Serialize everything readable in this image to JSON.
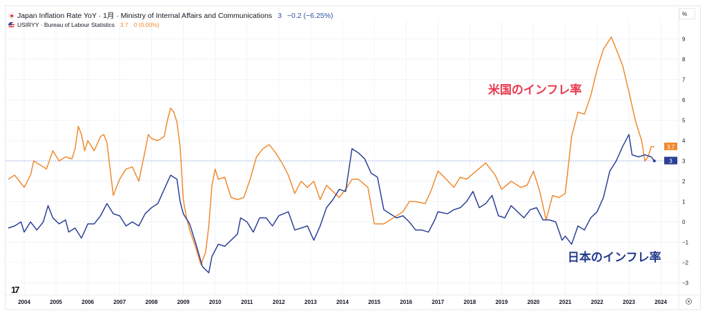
{
  "legend": {
    "jp": {
      "title": "Japan Inflation Rate YoY · 1月 · Ministry of Internal Affairs and Communications",
      "value": "3",
      "change": "−0.2 (−6.25%)"
    },
    "us": {
      "title": "USIRYY · Bureau of Labour Statistics",
      "value": "3.7",
      "change": "0 (0.00%)"
    }
  },
  "annotations": {
    "us": "米国のインフレ率",
    "jp": "日本のインフレ率"
  },
  "axis_unit": "%",
  "logo": "17",
  "icons": {
    "flag_jp": "japan-flag-icon",
    "flag_us": "us-flag-icon",
    "settings": "gear-icon"
  },
  "chart_data": {
    "type": "line",
    "xlim": [
      2003.4,
      2024.6
    ],
    "ylim": [
      -3.4,
      9.9
    ],
    "x_ticks": [
      "2004",
      "2005",
      "2006",
      "2007",
      "2008",
      "2009",
      "2010",
      "2011",
      "2012",
      "2013",
      "2014",
      "2015",
      "2016",
      "2017",
      "2018",
      "2019",
      "2020",
      "2021",
      "2022",
      "2023",
      "2024"
    ],
    "y_ticks": [
      -3,
      -2,
      -1,
      0,
      1,
      2,
      3,
      4,
      5,
      6,
      7,
      8,
      9
    ],
    "grid": true,
    "last_value_labels": {
      "us": "3.7",
      "jp": "3"
    },
    "reference_line": 3,
    "colors": {
      "us": "#f0892e",
      "jp": "#2b3f96",
      "annot_us": "#e8384f",
      "annot_jp": "#22398a"
    },
    "series": [
      {
        "key": "us",
        "name": "USIRYY",
        "points": [
          [
            2003.5,
            2.1
          ],
          [
            2003.7,
            2.3
          ],
          [
            2003.9,
            1.9
          ],
          [
            2004.0,
            1.7
          ],
          [
            2004.2,
            2.3
          ],
          [
            2004.3,
            3.0
          ],
          [
            2004.5,
            2.8
          ],
          [
            2004.7,
            2.6
          ],
          [
            2004.9,
            3.5
          ],
          [
            2005.1,
            3.0
          ],
          [
            2005.3,
            3.2
          ],
          [
            2005.5,
            3.1
          ],
          [
            2005.6,
            3.6
          ],
          [
            2005.7,
            4.7
          ],
          [
            2005.8,
            4.3
          ],
          [
            2005.9,
            3.5
          ],
          [
            2006.0,
            4.0
          ],
          [
            2006.2,
            3.5
          ],
          [
            2006.4,
            4.2
          ],
          [
            2006.5,
            4.3
          ],
          [
            2006.6,
            3.9
          ],
          [
            2006.8,
            1.3
          ],
          [
            2007.0,
            2.1
          ],
          [
            2007.2,
            2.6
          ],
          [
            2007.4,
            2.7
          ],
          [
            2007.6,
            2.0
          ],
          [
            2007.8,
            3.5
          ],
          [
            2007.9,
            4.3
          ],
          [
            2008.0,
            4.1
          ],
          [
            2008.2,
            4.0
          ],
          [
            2008.4,
            4.2
          ],
          [
            2008.5,
            5.0
          ],
          [
            2008.6,
            5.6
          ],
          [
            2008.7,
            5.4
          ],
          [
            2008.8,
            4.9
          ],
          [
            2008.9,
            3.7
          ],
          [
            2009.0,
            1.1
          ],
          [
            2009.1,
            0.2
          ],
          [
            2009.2,
            -0.4
          ],
          [
            2009.4,
            -1.3
          ],
          [
            2009.55,
            -2.1
          ],
          [
            2009.7,
            -1.5
          ],
          [
            2009.8,
            -0.2
          ],
          [
            2009.9,
            1.8
          ],
          [
            2010.0,
            2.6
          ],
          [
            2010.1,
            2.1
          ],
          [
            2010.3,
            2.2
          ],
          [
            2010.5,
            1.2
          ],
          [
            2010.7,
            1.1
          ],
          [
            2010.9,
            1.2
          ],
          [
            2011.1,
            2.1
          ],
          [
            2011.3,
            3.2
          ],
          [
            2011.5,
            3.6
          ],
          [
            2011.7,
            3.8
          ],
          [
            2011.9,
            3.4
          ],
          [
            2012.1,
            2.9
          ],
          [
            2012.3,
            2.3
          ],
          [
            2012.5,
            1.4
          ],
          [
            2012.7,
            2.0
          ],
          [
            2012.9,
            1.7
          ],
          [
            2013.1,
            2.0
          ],
          [
            2013.3,
            1.1
          ],
          [
            2013.5,
            1.8
          ],
          [
            2013.7,
            1.5
          ],
          [
            2013.9,
            1.2
          ],
          [
            2014.1,
            1.6
          ],
          [
            2014.3,
            2.1
          ],
          [
            2014.5,
            2.1
          ],
          [
            2014.8,
            1.7
          ],
          [
            2015.0,
            -0.1
          ],
          [
            2015.3,
            -0.1
          ],
          [
            2015.6,
            0.2
          ],
          [
            2015.9,
            0.5
          ],
          [
            2016.1,
            1.0
          ],
          [
            2016.3,
            1.0
          ],
          [
            2016.6,
            0.9
          ],
          [
            2016.8,
            1.6
          ],
          [
            2017.0,
            2.5
          ],
          [
            2017.2,
            2.2
          ],
          [
            2017.5,
            1.7
          ],
          [
            2017.7,
            2.2
          ],
          [
            2017.9,
            2.1
          ],
          [
            2018.2,
            2.5
          ],
          [
            2018.5,
            2.9
          ],
          [
            2018.8,
            2.3
          ],
          [
            2019.0,
            1.6
          ],
          [
            2019.3,
            2.0
          ],
          [
            2019.6,
            1.7
          ],
          [
            2019.8,
            1.8
          ],
          [
            2020.0,
            2.5
          ],
          [
            2020.2,
            1.5
          ],
          [
            2020.4,
            0.1
          ],
          [
            2020.6,
            1.3
          ],
          [
            2020.8,
            1.2
          ],
          [
            2021.0,
            1.4
          ],
          [
            2021.2,
            4.2
          ],
          [
            2021.4,
            5.4
          ],
          [
            2021.6,
            5.3
          ],
          [
            2021.8,
            6.2
          ],
          [
            2022.0,
            7.5
          ],
          [
            2022.2,
            8.5
          ],
          [
            2022.45,
            9.1
          ],
          [
            2022.6,
            8.5
          ],
          [
            2022.8,
            7.7
          ],
          [
            2023.0,
            6.4
          ],
          [
            2023.2,
            5.0
          ],
          [
            2023.4,
            4.0
          ],
          [
            2023.5,
            3.0
          ],
          [
            2023.6,
            3.2
          ],
          [
            2023.7,
            3.7
          ],
          [
            2023.8,
            3.7
          ]
        ]
      },
      {
        "key": "jp",
        "name": "Japan Inflation Rate YoY",
        "points": [
          [
            2003.5,
            -0.3
          ],
          [
            2003.7,
            -0.2
          ],
          [
            2003.9,
            0.0
          ],
          [
            2004.0,
            -0.5
          ],
          [
            2004.2,
            0.0
          ],
          [
            2004.4,
            -0.4
          ],
          [
            2004.6,
            0.0
          ],
          [
            2004.75,
            0.8
          ],
          [
            2004.9,
            0.2
          ],
          [
            2005.1,
            -0.1
          ],
          [
            2005.3,
            0.1
          ],
          [
            2005.4,
            -0.5
          ],
          [
            2005.6,
            -0.3
          ],
          [
            2005.8,
            -0.8
          ],
          [
            2006.0,
            -0.1
          ],
          [
            2006.2,
            -0.1
          ],
          [
            2006.4,
            0.3
          ],
          [
            2006.6,
            0.9
          ],
          [
            2006.8,
            0.4
          ],
          [
            2007.0,
            0.3
          ],
          [
            2007.2,
            -0.2
          ],
          [
            2007.4,
            0.0
          ],
          [
            2007.6,
            -0.2
          ],
          [
            2007.8,
            0.4
          ],
          [
            2008.0,
            0.7
          ],
          [
            2008.2,
            0.9
          ],
          [
            2008.4,
            1.6
          ],
          [
            2008.6,
            2.3
          ],
          [
            2008.8,
            2.1
          ],
          [
            2008.9,
            1.0
          ],
          [
            2009.0,
            0.4
          ],
          [
            2009.2,
            -0.1
          ],
          [
            2009.4,
            -1.1
          ],
          [
            2009.6,
            -2.2
          ],
          [
            2009.8,
            -2.5
          ],
          [
            2009.9,
            -1.7
          ],
          [
            2010.1,
            -1.1
          ],
          [
            2010.3,
            -1.2
          ],
          [
            2010.5,
            -0.9
          ],
          [
            2010.7,
            -0.6
          ],
          [
            2010.8,
            0.2
          ],
          [
            2011.0,
            0.0
          ],
          [
            2011.2,
            -0.5
          ],
          [
            2011.4,
            0.2
          ],
          [
            2011.6,
            0.2
          ],
          [
            2011.8,
            -0.2
          ],
          [
            2012.0,
            0.3
          ],
          [
            2012.3,
            0.5
          ],
          [
            2012.5,
            -0.4
          ],
          [
            2012.7,
            -0.3
          ],
          [
            2012.9,
            -0.2
          ],
          [
            2013.1,
            -0.9
          ],
          [
            2013.3,
            -0.2
          ],
          [
            2013.5,
            0.7
          ],
          [
            2013.7,
            1.1
          ],
          [
            2013.9,
            1.6
          ],
          [
            2014.1,
            1.5
          ],
          [
            2014.3,
            3.6
          ],
          [
            2014.5,
            3.4
          ],
          [
            2014.7,
            3.1
          ],
          [
            2014.9,
            2.4
          ],
          [
            2015.1,
            2.2
          ],
          [
            2015.3,
            0.6
          ],
          [
            2015.5,
            0.4
          ],
          [
            2015.7,
            0.2
          ],
          [
            2015.9,
            0.3
          ],
          [
            2016.1,
            0.0
          ],
          [
            2016.3,
            -0.4
          ],
          [
            2016.5,
            -0.4
          ],
          [
            2016.7,
            -0.5
          ],
          [
            2016.9,
            0.1
          ],
          [
            2017.0,
            0.5
          ],
          [
            2017.3,
            0.4
          ],
          [
            2017.5,
            0.6
          ],
          [
            2017.7,
            0.7
          ],
          [
            2017.9,
            1.0
          ],
          [
            2018.1,
            1.5
          ],
          [
            2018.3,
            0.7
          ],
          [
            2018.5,
            0.9
          ],
          [
            2018.7,
            1.3
          ],
          [
            2018.9,
            0.3
          ],
          [
            2019.1,
            0.2
          ],
          [
            2019.3,
            0.8
          ],
          [
            2019.5,
            0.5
          ],
          [
            2019.7,
            0.2
          ],
          [
            2019.9,
            0.6
          ],
          [
            2020.1,
            0.7
          ],
          [
            2020.3,
            0.1
          ],
          [
            2020.5,
            0.1
          ],
          [
            2020.7,
            0.0
          ],
          [
            2020.9,
            -0.9
          ],
          [
            2021.0,
            -0.7
          ],
          [
            2021.2,
            -1.1
          ],
          [
            2021.4,
            -0.2
          ],
          [
            2021.6,
            -0.4
          ],
          [
            2021.8,
            0.2
          ],
          [
            2022.0,
            0.5
          ],
          [
            2022.2,
            1.2
          ],
          [
            2022.4,
            2.5
          ],
          [
            2022.6,
            3.0
          ],
          [
            2022.8,
            3.7
          ],
          [
            2023.0,
            4.3
          ],
          [
            2023.1,
            3.3
          ],
          [
            2023.3,
            3.2
          ],
          [
            2023.5,
            3.3
          ],
          [
            2023.7,
            3.2
          ],
          [
            2023.8,
            3.0
          ]
        ]
      }
    ]
  }
}
